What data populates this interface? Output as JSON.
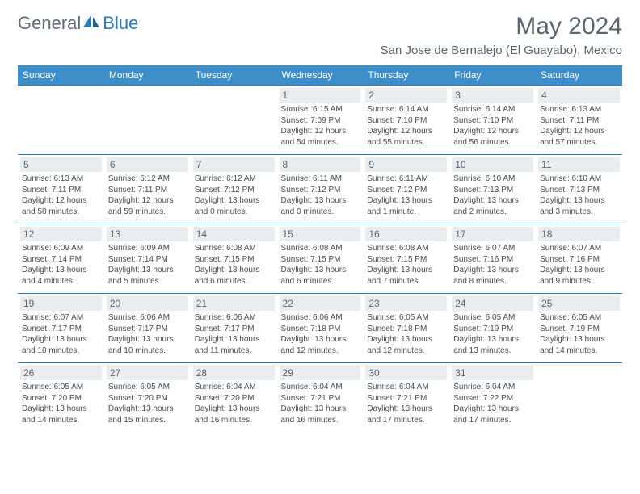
{
  "logo": {
    "general": "General",
    "blue": "Blue"
  },
  "title": "May 2024",
  "subtitle": "San Jose de Bernalejo (El Guayabo), Mexico",
  "colors": {
    "header_bg": "#3d8fc9",
    "header_text": "#ffffff",
    "daynum_bg": "#e9edf0",
    "border": "#2a7ab9",
    "title_color": "#5a6570",
    "text_color": "#4a4a4a",
    "logo_gray": "#5f6b76",
    "logo_blue": "#2a7ab9",
    "background": "#ffffff"
  },
  "fonts": {
    "title_size_pt": 22,
    "subtitle_size_pt": 11,
    "header_size_pt": 9,
    "daynum_size_pt": 9,
    "body_size_pt": 7.5
  },
  "weekdays": [
    "Sunday",
    "Monday",
    "Tuesday",
    "Wednesday",
    "Thursday",
    "Friday",
    "Saturday"
  ],
  "weeks": [
    [
      null,
      null,
      null,
      {
        "n": "1",
        "sr": "6:15 AM",
        "ss": "7:09 PM",
        "dl": "12 hours and 54 minutes."
      },
      {
        "n": "2",
        "sr": "6:14 AM",
        "ss": "7:10 PM",
        "dl": "12 hours and 55 minutes."
      },
      {
        "n": "3",
        "sr": "6:14 AM",
        "ss": "7:10 PM",
        "dl": "12 hours and 56 minutes."
      },
      {
        "n": "4",
        "sr": "6:13 AM",
        "ss": "7:11 PM",
        "dl": "12 hours and 57 minutes."
      }
    ],
    [
      {
        "n": "5",
        "sr": "6:13 AM",
        "ss": "7:11 PM",
        "dl": "12 hours and 58 minutes."
      },
      {
        "n": "6",
        "sr": "6:12 AM",
        "ss": "7:11 PM",
        "dl": "12 hours and 59 minutes."
      },
      {
        "n": "7",
        "sr": "6:12 AM",
        "ss": "7:12 PM",
        "dl": "13 hours and 0 minutes."
      },
      {
        "n": "8",
        "sr": "6:11 AM",
        "ss": "7:12 PM",
        "dl": "13 hours and 0 minutes."
      },
      {
        "n": "9",
        "sr": "6:11 AM",
        "ss": "7:12 PM",
        "dl": "13 hours and 1 minute."
      },
      {
        "n": "10",
        "sr": "6:10 AM",
        "ss": "7:13 PM",
        "dl": "13 hours and 2 minutes."
      },
      {
        "n": "11",
        "sr": "6:10 AM",
        "ss": "7:13 PM",
        "dl": "13 hours and 3 minutes."
      }
    ],
    [
      {
        "n": "12",
        "sr": "6:09 AM",
        "ss": "7:14 PM",
        "dl": "13 hours and 4 minutes."
      },
      {
        "n": "13",
        "sr": "6:09 AM",
        "ss": "7:14 PM",
        "dl": "13 hours and 5 minutes."
      },
      {
        "n": "14",
        "sr": "6:08 AM",
        "ss": "7:15 PM",
        "dl": "13 hours and 6 minutes."
      },
      {
        "n": "15",
        "sr": "6:08 AM",
        "ss": "7:15 PM",
        "dl": "13 hours and 6 minutes."
      },
      {
        "n": "16",
        "sr": "6:08 AM",
        "ss": "7:15 PM",
        "dl": "13 hours and 7 minutes."
      },
      {
        "n": "17",
        "sr": "6:07 AM",
        "ss": "7:16 PM",
        "dl": "13 hours and 8 minutes."
      },
      {
        "n": "18",
        "sr": "6:07 AM",
        "ss": "7:16 PM",
        "dl": "13 hours and 9 minutes."
      }
    ],
    [
      {
        "n": "19",
        "sr": "6:07 AM",
        "ss": "7:17 PM",
        "dl": "13 hours and 10 minutes."
      },
      {
        "n": "20",
        "sr": "6:06 AM",
        "ss": "7:17 PM",
        "dl": "13 hours and 10 minutes."
      },
      {
        "n": "21",
        "sr": "6:06 AM",
        "ss": "7:17 PM",
        "dl": "13 hours and 11 minutes."
      },
      {
        "n": "22",
        "sr": "6:06 AM",
        "ss": "7:18 PM",
        "dl": "13 hours and 12 minutes."
      },
      {
        "n": "23",
        "sr": "6:05 AM",
        "ss": "7:18 PM",
        "dl": "13 hours and 12 minutes."
      },
      {
        "n": "24",
        "sr": "6:05 AM",
        "ss": "7:19 PM",
        "dl": "13 hours and 13 minutes."
      },
      {
        "n": "25",
        "sr": "6:05 AM",
        "ss": "7:19 PM",
        "dl": "13 hours and 14 minutes."
      }
    ],
    [
      {
        "n": "26",
        "sr": "6:05 AM",
        "ss": "7:20 PM",
        "dl": "13 hours and 14 minutes."
      },
      {
        "n": "27",
        "sr": "6:05 AM",
        "ss": "7:20 PM",
        "dl": "13 hours and 15 minutes."
      },
      {
        "n": "28",
        "sr": "6:04 AM",
        "ss": "7:20 PM",
        "dl": "13 hours and 16 minutes."
      },
      {
        "n": "29",
        "sr": "6:04 AM",
        "ss": "7:21 PM",
        "dl": "13 hours and 16 minutes."
      },
      {
        "n": "30",
        "sr": "6:04 AM",
        "ss": "7:21 PM",
        "dl": "13 hours and 17 minutes."
      },
      {
        "n": "31",
        "sr": "6:04 AM",
        "ss": "7:22 PM",
        "dl": "13 hours and 17 minutes."
      },
      null
    ]
  ]
}
